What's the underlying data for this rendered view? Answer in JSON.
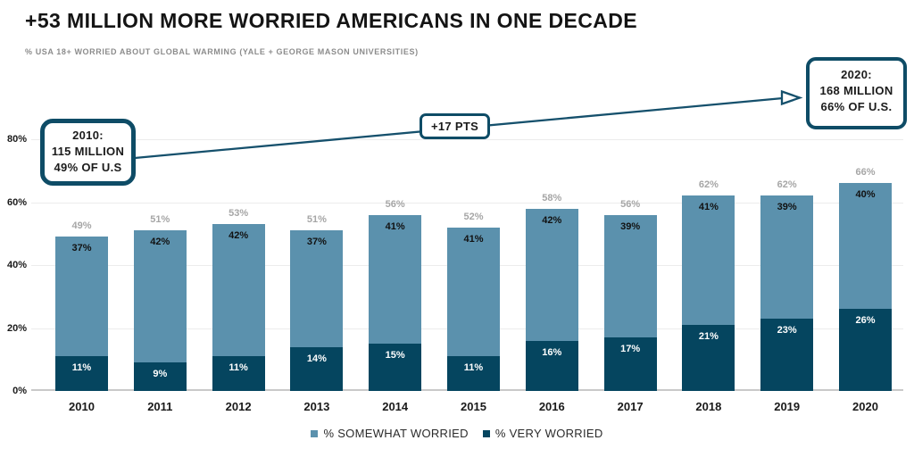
{
  "header": {
    "title": "+53 MILLION MORE WORRIED AMERICANS IN ONE DECADE",
    "subtitle": "% USA 18+ WORRIED ABOUT GLOBAL WARMING (YALE + GEORGE MASON UNIVERSITIES)"
  },
  "chart_data": {
    "type": "bar",
    "stacked": true,
    "title": "+53 MILLION MORE WORRIED AMERICANS IN ONE DECADE",
    "subtitle": "% USA 18+ WORRIED ABOUT GLOBAL WARMING (YALE + GEORGE MASON UNIVERSITIES)",
    "categories": [
      "2010",
      "2011",
      "2012",
      "2013",
      "2014",
      "2015",
      "2016",
      "2017",
      "2018",
      "2019",
      "2020"
    ],
    "series": [
      {
        "name": "% SOMEWHAT WORRIED",
        "color": "#5b91ad",
        "values": [
          37,
          42,
          42,
          37,
          41,
          41,
          42,
          39,
          41,
          39,
          40
        ]
      },
      {
        "name": "% VERY WORRIED",
        "color": "#05455f",
        "values": [
          11,
          9,
          11,
          14,
          15,
          11,
          16,
          17,
          21,
          23,
          26
        ]
      }
    ],
    "totals": [
      49,
      51,
      53,
      51,
      56,
      52,
      58,
      56,
      62,
      62,
      66
    ],
    "total_label_suffix": "%",
    "ylim": [
      0,
      80
    ],
    "yticks": [
      "0%",
      "20%",
      "40%",
      "60%",
      "80%"
    ],
    "grid": true,
    "legend_position": "bottom",
    "annotations": {
      "start_box": {
        "line1": "2010:",
        "line2": "115 MILLION",
        "line3": "49% OF U.S"
      },
      "end_box": {
        "line1": "2020:",
        "line2": "168 MILLION",
        "line3": "66% OF U.S."
      },
      "delta_label": "+17 PTS"
    }
  },
  "colors": {
    "somewhat_worried": "#5b91ad",
    "very_worried": "#05455f",
    "annotation_border": "#0e4c66",
    "connector_line": "#15506c",
    "gridline": "#ececec",
    "axis_line": "#c9c9c9",
    "total_label": "#a6a6a6",
    "subtitle_text": "#8c8c8c"
  }
}
